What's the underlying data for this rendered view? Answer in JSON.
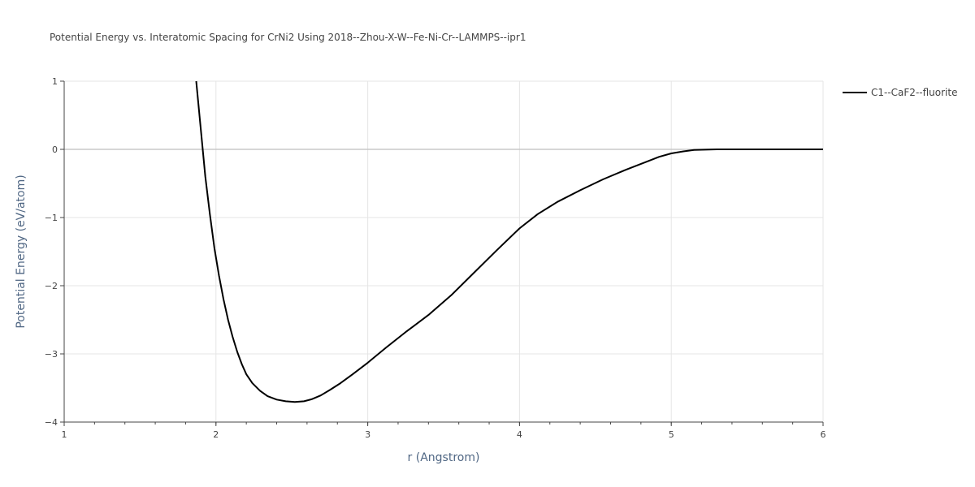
{
  "chart_data": {
    "type": "line",
    "title": "Potential Energy vs. Interatomic Spacing for CrNi2 Using 2018--Zhou-X-W--Fe-Ni-Cr--LAMMPS--ipr1",
    "xlabel": "r (Angstrom)",
    "ylabel": "Potential Energy (eV/atom)",
    "xlim": [
      1,
      6
    ],
    "ylim": [
      -4,
      1
    ],
    "x_ticks": [
      1,
      2,
      3,
      4,
      5,
      6
    ],
    "x_tick_labels": [
      "1",
      "2",
      "3",
      "4",
      "5",
      "6"
    ],
    "y_ticks": [
      1,
      0,
      -1,
      -2,
      -3,
      -4
    ],
    "y_tick_labels": [
      "1",
      "0",
      "−1",
      "−2",
      "−3",
      "−4"
    ],
    "grid": true,
    "legend_position": "top-right outside",
    "series": [
      {
        "name": "C1--CaF2--fluorite",
        "color": "#000000",
        "x": [
          1.87,
          1.9,
          1.93,
          1.96,
          1.99,
          2.02,
          2.05,
          2.08,
          2.11,
          2.14,
          2.17,
          2.2,
          2.24,
          2.29,
          2.34,
          2.4,
          2.46,
          2.52,
          2.58,
          2.63,
          2.69,
          2.75,
          2.82,
          2.9,
          3.0,
          3.12,
          3.25,
          3.4,
          3.55,
          3.7,
          3.85,
          4.0,
          4.12,
          4.25,
          4.4,
          4.55,
          4.7,
          4.85,
          4.92,
          5.0,
          5.08,
          5.15,
          5.3,
          5.5,
          5.8,
          6.0
        ],
        "y": [
          1.0,
          0.3,
          -0.4,
          -0.95,
          -1.45,
          -1.85,
          -2.2,
          -2.5,
          -2.75,
          -2.97,
          -3.15,
          -3.3,
          -3.43,
          -3.54,
          -3.62,
          -3.67,
          -3.695,
          -3.705,
          -3.695,
          -3.665,
          -3.61,
          -3.53,
          -3.43,
          -3.3,
          -3.13,
          -2.91,
          -2.68,
          -2.43,
          -2.14,
          -1.81,
          -1.48,
          -1.16,
          -0.95,
          -0.77,
          -0.6,
          -0.44,
          -0.3,
          -0.17,
          -0.11,
          -0.06,
          -0.03,
          -0.01,
          0.0,
          0.0,
          0.0,
          0.0
        ]
      }
    ]
  }
}
